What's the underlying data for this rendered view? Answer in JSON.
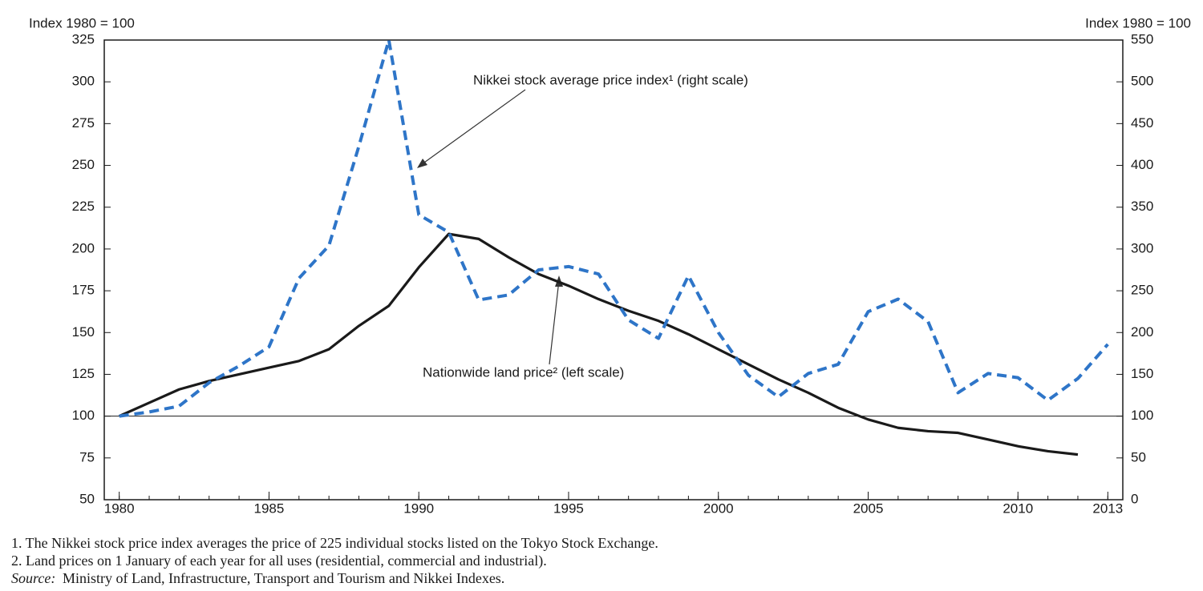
{
  "chart_data": {
    "type": "line",
    "y_label": "Index 1980 = 100",
    "y2_label": "Index 1980 = 100",
    "x": [
      1980,
      1981,
      1982,
      1983,
      1984,
      1985,
      1986,
      1987,
      1988,
      1989,
      1990,
      1991,
      1992,
      1993,
      1994,
      1995,
      1996,
      1997,
      1998,
      1999,
      2000,
      2001,
      2002,
      2003,
      2004,
      2005,
      2006,
      2007,
      2008,
      2009,
      2010,
      2011,
      2012,
      2013
    ],
    "xlim": [
      1979.5,
      2013.5
    ],
    "xticks": [
      1980,
      1985,
      1990,
      1995,
      2000,
      2005,
      2010,
      2013
    ],
    "ylim": [
      50,
      325
    ],
    "yticks": [
      50,
      75,
      100,
      125,
      150,
      175,
      200,
      225,
      250,
      275,
      300,
      325
    ],
    "y2lim": [
      0,
      550
    ],
    "y2ticks": [
      0,
      50,
      100,
      150,
      200,
      250,
      300,
      350,
      400,
      450,
      500,
      550
    ],
    "hline": 100,
    "series": [
      {
        "name": "Nationwide land price² (left scale)",
        "color": "#1a1a1a",
        "dash": false,
        "values": [
          100,
          108,
          116,
          121,
          125,
          129,
          133,
          140,
          154,
          166,
          189,
          209,
          206,
          195,
          185,
          178,
          170,
          163,
          157,
          149,
          140,
          131,
          122,
          114,
          105,
          98,
          93,
          91,
          90,
          86,
          82,
          79,
          77,
          null
        ]
      },
      {
        "name": "Nikkei stock average price index¹ (right scale)",
        "color": "#2e75c8",
        "dash": true,
        "axis": "y2",
        "values": [
          100,
          105,
          112,
          140,
          160,
          183,
          265,
          304,
          423,
          550,
          341,
          320,
          239,
          245,
          275,
          279,
          270,
          215,
          193,
          268,
          200,
          149,
          123,
          151,
          162,
          225,
          240,
          213,
          128,
          151,
          146,
          119,
          145,
          186
        ]
      }
    ],
    "notes": [
      "1.  The Nikkei stock price index averages the price of 225 individual stocks listed on the Tokyo Stock Exchange.",
      "2.  Land prices on 1 January of each year for all uses (residential, commercial and industrial)."
    ],
    "source_label": "Source:",
    "source": "Ministry of Land, Infrastructure, Transport and Tourism and Nikkei Indexes."
  }
}
